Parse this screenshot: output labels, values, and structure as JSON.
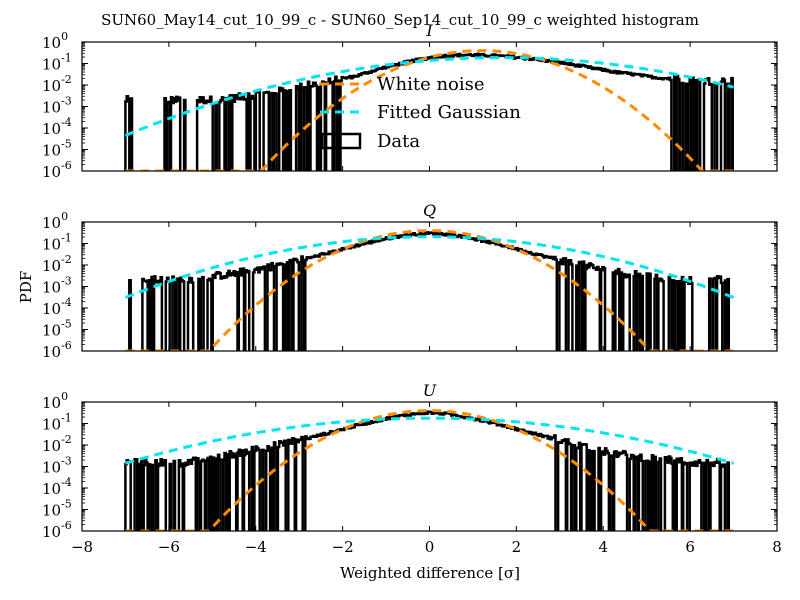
{
  "chart_data": {
    "type": "histogram",
    "title": "SUN60_May14_cut_10_99_c - SUN60_Sep14_cut_10_99_c weighted histogram",
    "xlabel": "Weighted difference [σ]",
    "ylabel": "PDF",
    "xlim": [
      -8,
      8
    ],
    "ylim": [
      1e-06,
      1
    ],
    "yscale": "log",
    "x_ticks": [
      "−8",
      "−6",
      "−4",
      "−2",
      "0",
      "2",
      "4",
      "6",
      "8"
    ],
    "x_tick_values": [
      -8,
      -6,
      -4,
      -2,
      0,
      2,
      4,
      6,
      8
    ],
    "y_ticks": [
      {
        "base": "10",
        "exp": "0"
      },
      {
        "base": "10",
        "exp": "-1"
      },
      {
        "base": "10",
        "exp": "-2"
      },
      {
        "base": "10",
        "exp": "-3"
      },
      {
        "base": "10",
        "exp": "-4"
      },
      {
        "base": "10",
        "exp": "-5"
      },
      {
        "base": "10",
        "exp": "-6"
      }
    ],
    "legend": {
      "placement": "upper-center (first panel)",
      "entries": [
        {
          "label": "White noise",
          "style": "dashed",
          "color": "#ff8c00"
        },
        {
          "label": "Fitted Gaussian",
          "style": "dashed",
          "color": "#00e5ee"
        },
        {
          "label": "Data",
          "style": "step-box",
          "color": "#000000"
        }
      ]
    },
    "panels": [
      {
        "title": "I",
        "white_noise": {
          "mean": 1.2,
          "sigma": 1.0,
          "color": "#ff8c00"
        },
        "fitted_gaussian": {
          "mean": 1.66,
          "sigma": 2.12,
          "color": "#00e5ee"
        },
        "data": {
          "x_start": -7.0,
          "x_step": 0.25,
          "values": [
            0.002,
            0,
            0,
            0,
            0.002,
            0.002,
            0,
            0.002,
            0.002,
            0.002,
            0.0025,
            0.003,
            0.0035,
            0.004,
            0.005,
            0.006,
            0.008,
            0.01,
            0.012,
            0.015,
            0.02,
            0.025,
            0.035,
            0.05,
            0.07,
            0.09,
            0.12,
            0.15,
            0.19,
            0.22,
            0.24,
            0.25,
            0.25,
            0.24,
            0.23,
            0.21,
            0.19,
            0.17,
            0.15,
            0.13,
            0.11,
            0.09,
            0.075,
            0.06,
            0.05,
            0.04,
            0.035,
            0.03,
            0.025,
            0.022,
            0.02,
            0.018,
            0.016,
            0.015,
            0.015,
            0.015,
            0.015
          ]
        }
      },
      {
        "title": "Q",
        "white_noise": {
          "mean": 0.0,
          "sigma": 1.0,
          "color": "#ff8c00"
        },
        "fitted_gaussian": {
          "mean": 0.0,
          "sigma": 1.94,
          "color": "#00e5ee"
        },
        "data": {
          "x_start": -7.0,
          "x_step": 0.25,
          "values": [
            0.002,
            0,
            0.002,
            0.002,
            0.002,
            0.002,
            0.0022,
            0.0025,
            0.003,
            0.0035,
            0.004,
            0.005,
            0.006,
            0.008,
            0.01,
            0.013,
            0.017,
            0.022,
            0.03,
            0.04,
            0.055,
            0.075,
            0.1,
            0.13,
            0.17,
            0.21,
            0.25,
            0.28,
            0.3,
            0.28,
            0.25,
            0.21,
            0.17,
            0.13,
            0.1,
            0.075,
            0.055,
            0.04,
            0.03,
            0.022,
            0.017,
            0.013,
            0.01,
            0.008,
            0.006,
            0.005,
            0.004,
            0.0035,
            0.003,
            0.0025,
            0.0022,
            0.002,
            0.002,
            0,
            0.002,
            0.002,
            0
          ]
        }
      },
      {
        "title": "U",
        "white_noise": {
          "mean": 0.0,
          "sigma": 1.0,
          "color": "#ff8c00"
        },
        "fitted_gaussian": {
          "mean": 0.0,
          "sigma": 2.25,
          "color": "#00e5ee"
        },
        "data": {
          "x_start": -7.0,
          "x_step": 0.25,
          "values": [
            0.0015,
            0.0015,
            0.0015,
            0.0015,
            0.0015,
            0.0015,
            0.0017,
            0.002,
            0.0025,
            0.003,
            0.004,
            0.005,
            0.0065,
            0.008,
            0.01,
            0.013,
            0.017,
            0.022,
            0.03,
            0.04,
            0.055,
            0.075,
            0.1,
            0.13,
            0.17,
            0.21,
            0.26,
            0.3,
            0.32,
            0.3,
            0.26,
            0.21,
            0.17,
            0.13,
            0.1,
            0.075,
            0.055,
            0.04,
            0.03,
            0.022,
            0.017,
            0.012,
            0.009,
            0.007,
            0.005,
            0.004,
            0.0035,
            0.003,
            0.0025,
            0.002,
            0.002,
            0.0018,
            0.0015,
            0.0015,
            0.0015,
            0.0015,
            0
          ]
        }
      }
    ]
  }
}
